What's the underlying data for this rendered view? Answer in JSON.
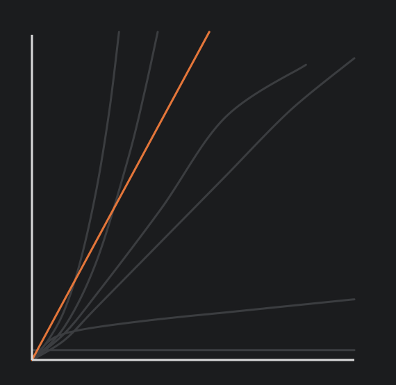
{
  "colors": {
    "background": "#1b1c1e",
    "axis": "#d9d9d9",
    "muted_curve": "#3b3d40",
    "highlight_curve": "#e4763a"
  },
  "chart_data": {
    "type": "line",
    "title": "",
    "xlabel": "",
    "ylabel": "",
    "grid": false,
    "legend": "none",
    "tick_labels": "none",
    "xlim": [
      0,
      10
    ],
    "ylim": [
      0,
      10
    ],
    "highlight_series": "linear",
    "series": [
      {
        "id": "constant",
        "kind": "constant",
        "color": "muted",
        "points": [
          [
            0,
            0.3
          ],
          [
            10,
            0.3
          ]
        ]
      },
      {
        "id": "logarithmic",
        "kind": "log",
        "color": "muted",
        "points": [
          [
            0,
            0
          ],
          [
            0.5,
            0.55
          ],
          [
            1,
            0.8
          ],
          [
            2,
            1.0
          ],
          [
            4,
            1.25
          ],
          [
            6,
            1.45
          ],
          [
            8,
            1.65
          ],
          [
            10,
            1.85
          ]
        ]
      },
      {
        "id": "linearithmic",
        "kind": "nlogn",
        "color": "muted",
        "points": [
          [
            0,
            0
          ],
          [
            1,
            0.6
          ],
          [
            2,
            1.6
          ],
          [
            4,
            3.6
          ],
          [
            6,
            5.6
          ],
          [
            8,
            7.6
          ],
          [
            10,
            9.2
          ]
        ]
      },
      {
        "id": "superlinear",
        "kind": "power",
        "color": "muted",
        "points": [
          [
            0,
            0
          ],
          [
            1,
            0.8
          ],
          [
            2,
            2.0
          ],
          [
            4,
            4.6
          ],
          [
            6,
            7.4
          ],
          [
            8.5,
            9.0
          ]
        ]
      },
      {
        "id": "linear",
        "kind": "linear",
        "color": "highlight",
        "points": [
          [
            0,
            0
          ],
          [
            5.5,
            10
          ]
        ]
      },
      {
        "id": "quadratic",
        "kind": "quadratic",
        "color": "muted",
        "points": [
          [
            0,
            0
          ],
          [
            1,
            1.0
          ],
          [
            2,
            3.0
          ],
          [
            3,
            6.2
          ],
          [
            3.5,
            8.2
          ],
          [
            3.9,
            10
          ]
        ]
      },
      {
        "id": "exponential",
        "kind": "exponential",
        "color": "muted",
        "points": [
          [
            0,
            0
          ],
          [
            0.5,
            0.6
          ],
          [
            1,
            1.5
          ],
          [
            1.5,
            3.0
          ],
          [
            2,
            5.2
          ],
          [
            2.4,
            7.6
          ],
          [
            2.7,
            10
          ]
        ]
      }
    ]
  }
}
